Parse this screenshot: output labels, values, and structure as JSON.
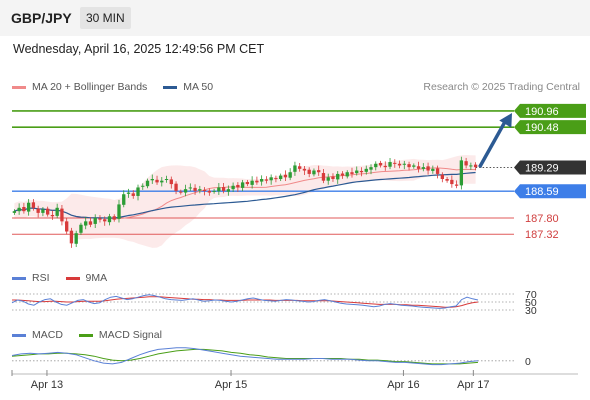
{
  "header": {
    "symbol": "GBP/JPY",
    "interval": "30 MIN"
  },
  "timestamp": "Wednesday, April 16, 2025 12:49:56 PM CET",
  "research": "Research © 2025 Trading Central",
  "colors": {
    "resistance": "#4a9e17",
    "support": "#3d7ee8",
    "target": "#e05a5a",
    "ma20": "#f08a8a",
    "ma50": "#2c5a93",
    "candle_up": "#2c9c35",
    "candle_down": "#d83a3a",
    "arrow": "#2c5a93"
  },
  "chart_data": [
    {
      "type": "candlestick",
      "name": "price",
      "legend": [
        {
          "label": "MA 20 + Bollinger Bands",
          "color": "#f08a8a"
        },
        {
          "label": "MA 50",
          "color": "#2c5a93"
        }
      ],
      "ylim": [
        186.5,
        191.4
      ],
      "x_labels": [
        "Apr 13",
        "Apr 15",
        "Apr 16",
        "Apr 17"
      ],
      "levels": [
        {
          "value": 190.96,
          "label": "190.96",
          "kind": "resistance"
        },
        {
          "value": 190.48,
          "label": "190.48",
          "kind": "resistance"
        },
        {
          "value": 189.29,
          "label": "189.29",
          "kind": "last"
        },
        {
          "value": 188.59,
          "label": "188.59",
          "kind": "support"
        },
        {
          "value": 187.8,
          "label": "187.80",
          "kind": "target"
        },
        {
          "value": 187.32,
          "label": "187.32",
          "kind": "target"
        }
      ],
      "trend_arrow": {
        "from": 189.3,
        "to": 190.9
      },
      "close_path": [
        188.0,
        188.1,
        188.0,
        188.25,
        188.1,
        187.95,
        188.05,
        187.9,
        187.85,
        188.1,
        187.7,
        187.4,
        187.05,
        187.35,
        187.6,
        187.7,
        187.6,
        187.8,
        187.75,
        187.7,
        187.85,
        187.75,
        188.2,
        188.5,
        188.55,
        188.45,
        188.7,
        188.75,
        188.9,
        188.95,
        188.85,
        188.9,
        188.95,
        188.8,
        188.6,
        188.55,
        188.65,
        188.7,
        188.6,
        188.65,
        188.6,
        188.55,
        188.6,
        188.7,
        188.6,
        188.65,
        188.75,
        188.7,
        188.85,
        188.8,
        188.9,
        188.85,
        188.95,
        188.9,
        189.0,
        188.95,
        189.05,
        189.0,
        189.15,
        189.35,
        189.25,
        189.2,
        189.1,
        189.2,
        189.15,
        188.9,
        189.0,
        188.95,
        189.1,
        189.05,
        189.15,
        189.1,
        189.2,
        189.15,
        189.25,
        189.3,
        189.4,
        189.35,
        189.3,
        189.45,
        189.4,
        189.35,
        189.4,
        189.3,
        189.35,
        189.25,
        189.3,
        189.2,
        189.25,
        189.1,
        188.95,
        188.9,
        188.8,
        188.75,
        189.5,
        189.35,
        189.35,
        189.3
      ]
    },
    {
      "type": "line",
      "name": "rsi",
      "legend": [
        {
          "label": "RSI",
          "color": "#5a80d6"
        },
        {
          "label": "9MA",
          "color": "#d83a3a"
        }
      ],
      "ylim": [
        20,
        80
      ],
      "levels": [
        70,
        50,
        30
      ],
      "level_labels": [
        "70",
        "50",
        "30"
      ],
      "rsi": [
        48,
        55,
        52,
        45,
        42,
        50,
        56,
        58,
        50,
        44,
        42,
        48,
        54,
        56,
        50,
        46,
        48,
        56,
        62,
        64,
        60,
        56,
        58,
        62,
        66,
        68,
        66,
        62,
        58,
        56,
        55,
        54,
        56,
        58,
        55,
        52,
        53,
        55,
        54,
        52,
        50,
        52,
        55,
        58,
        60,
        57,
        54,
        53,
        52,
        54,
        56,
        55,
        53,
        52,
        50,
        51,
        54,
        56,
        53,
        50,
        47,
        45,
        44,
        43,
        42,
        40,
        38,
        40,
        44,
        46,
        44,
        42,
        41,
        40,
        38,
        37,
        36,
        35,
        34,
        35,
        38,
        40,
        56,
        62,
        58,
        55
      ],
      "ma": [
        55,
        55,
        54,
        53,
        52,
        51,
        51,
        52,
        52,
        51,
        50,
        50,
        51,
        52,
        52,
        52,
        52,
        53,
        55,
        57,
        58,
        59,
        60,
        61,
        62,
        63,
        63,
        63,
        62,
        61,
        60,
        59,
        58,
        57,
        57,
        56,
        56,
        55,
        55,
        54,
        54,
        54,
        54,
        55,
        55,
        55,
        55,
        55,
        54,
        54,
        54,
        54,
        54,
        53,
        53,
        53,
        53,
        53,
        53,
        52,
        51,
        50,
        49,
        48,
        47,
        46,
        45,
        44,
        44,
        44,
        44,
        43,
        43,
        42,
        42,
        41,
        40,
        39,
        38,
        37,
        37,
        38,
        41,
        45,
        48,
        50
      ]
    },
    {
      "type": "line",
      "name": "macd",
      "legend": [
        {
          "label": "MACD",
          "color": "#5a80d6"
        },
        {
          "label": "MACD Signal",
          "color": "#4a9e17"
        }
      ],
      "ylim": [
        -0.12,
        0.22
      ],
      "zero_label": "0",
      "macd": [
        0.07,
        0.09,
        0.1,
        0.09,
        0.1,
        0.11,
        0.1,
        0.08,
        0.04,
        0.0,
        -0.03,
        -0.04,
        -0.02,
        0.03,
        0.08,
        0.12,
        0.15,
        0.16,
        0.17,
        0.17,
        0.16,
        0.14,
        0.12,
        0.1,
        0.08,
        0.06,
        0.05,
        0.04,
        0.03,
        0.02,
        0.02,
        0.02,
        0.02,
        0.03,
        0.03,
        0.02,
        0.02,
        0.02,
        0.01,
        0.0,
        0.0,
        -0.01,
        -0.02,
        -0.02,
        -0.03,
        -0.04,
        -0.05,
        -0.05,
        -0.04,
        -0.03,
        -0.01,
        0.0
      ],
      "signal": [
        0.06,
        0.07,
        0.08,
        0.09,
        0.09,
        0.1,
        0.1,
        0.09,
        0.08,
        0.06,
        0.03,
        0.01,
        0.0,
        0.01,
        0.03,
        0.06,
        0.09,
        0.11,
        0.13,
        0.14,
        0.15,
        0.15,
        0.14,
        0.13,
        0.11,
        0.1,
        0.08,
        0.07,
        0.05,
        0.04,
        0.03,
        0.03,
        0.03,
        0.03,
        0.03,
        0.03,
        0.03,
        0.02,
        0.02,
        0.01,
        0.01,
        0.0,
        -0.01,
        -0.01,
        -0.02,
        -0.03,
        -0.04,
        -0.04,
        -0.04,
        -0.04,
        -0.03,
        -0.02
      ]
    }
  ]
}
